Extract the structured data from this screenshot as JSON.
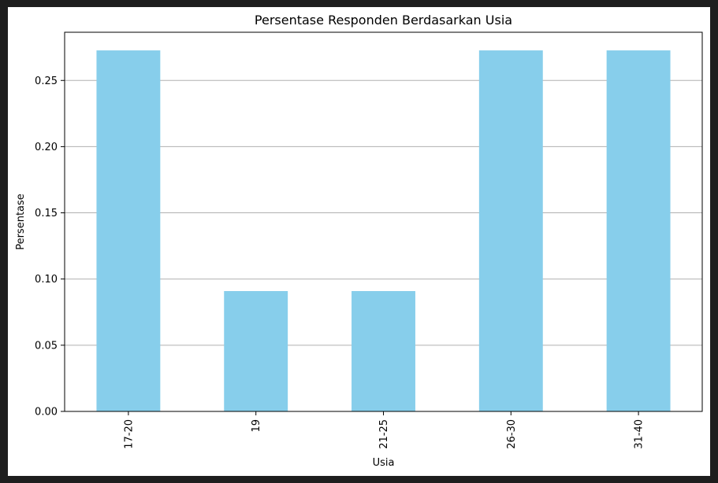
{
  "chart_data": {
    "type": "bar",
    "title": "Persentase Responden Berdasarkan Usia",
    "xlabel": "Usia",
    "ylabel": "Persentase",
    "categories": [
      "17-20",
      "19",
      "21-25",
      "26-30",
      "31-40"
    ],
    "values": [
      0.2727,
      0.0909,
      0.0909,
      0.2727,
      0.2727
    ],
    "ylim": [
      0,
      0.2864
    ],
    "yticks": [
      "0.00",
      "0.05",
      "0.10",
      "0.15",
      "0.20",
      "0.25"
    ],
    "grid": "y",
    "legend": "none",
    "colors": {
      "bar": "#87ceeb",
      "grid": "#b0b0b0",
      "axis": "#000000",
      "background": "#ffffff",
      "outer_background": "#1e1e1e"
    }
  }
}
